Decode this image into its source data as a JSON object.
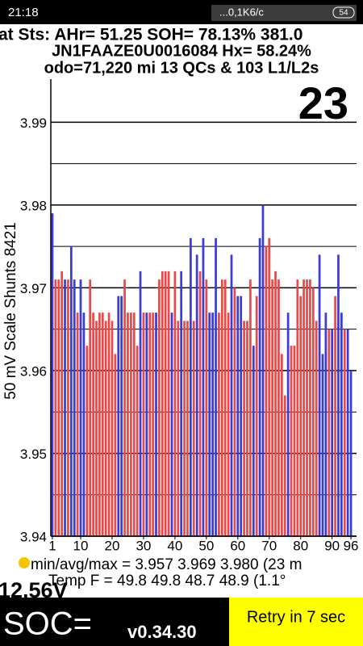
{
  "status_bar": {
    "time": "21:18",
    "network": "...0,1K6/c",
    "battery": "54"
  },
  "header": {
    "line1": "at Sts: AHr= 51.25 SOH= 78.13% 381.0",
    "line2": "JN1FAAZE0U0016084   Hx= 58.24%",
    "line3": "odo=71,220 mi  13 QCs & 103 L1/L2s"
  },
  "chart_data": {
    "type": "bar",
    "y_label": "50 mV Scale   Shunts 8421",
    "annotation": "23",
    "x": [
      1,
      2,
      3,
      4,
      5,
      6,
      7,
      8,
      9,
      10,
      11,
      12,
      13,
      14,
      15,
      16,
      17,
      18,
      19,
      20,
      21,
      22,
      23,
      24,
      25,
      26,
      27,
      28,
      29,
      30,
      31,
      32,
      33,
      34,
      35,
      36,
      37,
      38,
      39,
      40,
      41,
      42,
      43,
      44,
      45,
      46,
      47,
      48,
      49,
      50,
      51,
      52,
      53,
      54,
      55,
      56,
      57,
      58,
      59,
      60,
      61,
      62,
      63,
      64,
      65,
      66,
      67,
      68,
      69,
      70,
      71,
      72,
      73,
      74,
      75,
      76,
      77,
      78,
      79,
      80,
      81,
      82,
      83,
      84,
      85,
      86,
      87,
      88,
      89,
      90,
      91,
      92,
      93,
      94,
      95,
      96
    ],
    "values": [
      3.979,
      3.971,
      3.971,
      3.972,
      3.971,
      3.971,
      3.975,
      3.971,
      3.967,
      3.971,
      3.967,
      3.963,
      3.971,
      3.967,
      3.966,
      3.967,
      3.967,
      3.966,
      3.967,
      3.966,
      3.962,
      3.969,
      3.969,
      3.971,
      3.967,
      3.967,
      3.967,
      3.963,
      3.972,
      3.967,
      3.967,
      3.967,
      3.967,
      3.967,
      3.971,
      3.972,
      3.972,
      3.972,
      3.967,
      3.972,
      3.966,
      3.972,
      3.966,
      3.966,
      3.976,
      3.966,
      3.974,
      3.972,
      3.976,
      3.971,
      3.967,
      3.967,
      3.976,
      3.967,
      3.971,
      3.971,
      3.967,
      3.974,
      3.97,
      3.969,
      3.969,
      3.966,
      3.966,
      3.971,
      3.963,
      3.969,
      3.976,
      3.98,
      3.975,
      3.976,
      3.971,
      3.972,
      3.971,
      3.962,
      3.957,
      3.967,
      3.963,
      3.963,
      3.971,
      3.969,
      3.971,
      3.971,
      3.971,
      3.97,
      3.966,
      3.974,
      3.962,
      3.967,
      3.965,
      3.965,
      3.969,
      3.974,
      3.967,
      3.965,
      3.965,
      3.96
    ],
    "colors": [
      "#3b3bd6",
      "#e84a4a",
      "#e84a4a",
      "#e84a4a",
      "#3b3bd6",
      "#e84a4a",
      "#3b3bd6",
      "#3b3bd6",
      "#e84a4a",
      "#3b3bd6",
      "#3b3bd6",
      "#e84a4a",
      "#e84a4a",
      "#e84a4a",
      "#e84a4a",
      "#e84a4a",
      "#e84a4a",
      "#e84a4a",
      "#e84a4a",
      "#e84a4a",
      "#e84a4a",
      "#3b3bd6",
      "#3b3bd6",
      "#e84a4a",
      "#e84a4a",
      "#e84a4a",
      "#e84a4a",
      "#e84a4a",
      "#3b3bd6",
      "#e84a4a",
      "#3b3bd6",
      "#e84a4a",
      "#e84a4a",
      "#3b3bd6",
      "#e84a4a",
      "#e84a4a",
      "#e84a4a",
      "#e84a4a",
      "#3b3bd6",
      "#e84a4a",
      "#e84a4a",
      "#3b3bd6",
      "#e84a4a",
      "#e84a4a",
      "#3b3bd6",
      "#e84a4a",
      "#3b3bd6",
      "#e84a4a",
      "#3b3bd6",
      "#e84a4a",
      "#3b3bd6",
      "#3b3bd6",
      "#3b3bd6",
      "#e84a4a",
      "#e84a4a",
      "#e84a4a",
      "#e84a4a",
      "#3b3bd6",
      "#e84a4a",
      "#3b3bd6",
      "#3b3bd6",
      "#e84a4a",
      "#e84a4a",
      "#e84a4a",
      "#3b3bd6",
      "#e84a4a",
      "#3b3bd6",
      "#3b3bd6",
      "#e84a4a",
      "#e84a4a",
      "#e84a4a",
      "#e84a4a",
      "#e84a4a",
      "#e84a4a",
      "#e84a4a",
      "#3b3bd6",
      "#e84a4a",
      "#e84a4a",
      "#e84a4a",
      "#e84a4a",
      "#e84a4a",
      "#e84a4a",
      "#e84a4a",
      "#e84a4a",
      "#e84a4a",
      "#3b3bd6",
      "#3b3bd6",
      "#3b3bd6",
      "#e84a4a",
      "#3b3bd6",
      "#e84a4a",
      "#3b3bd6",
      "#3b3bd6",
      "#e84a4a",
      "#3b3bd6",
      "#3b3bd6"
    ],
    "xlim": [
      0.5,
      96.5
    ],
    "xticks": [
      1,
      10,
      20,
      30,
      40,
      50,
      60,
      70,
      80,
      90,
      96
    ],
    "ylim": [
      3.94,
      3.9952
    ],
    "yticks": [
      3.94,
      3.95,
      3.96,
      3.97,
      3.98,
      3.99
    ],
    "minor_yticks": [
      3.945,
      3.955,
      3.965,
      3.975,
      3.985
    ],
    "grid": true
  },
  "footer": {
    "stats": "min/avg/max = 3.957 3.969 3.980  (23 m",
    "temp": "Temp F = 49.8  49.8  48.7  48.9  (1.1°",
    "voltage": "12.56V",
    "soc": "SOC=",
    "version": "v0.34.30",
    "retry": "Retry in 7 sec"
  }
}
